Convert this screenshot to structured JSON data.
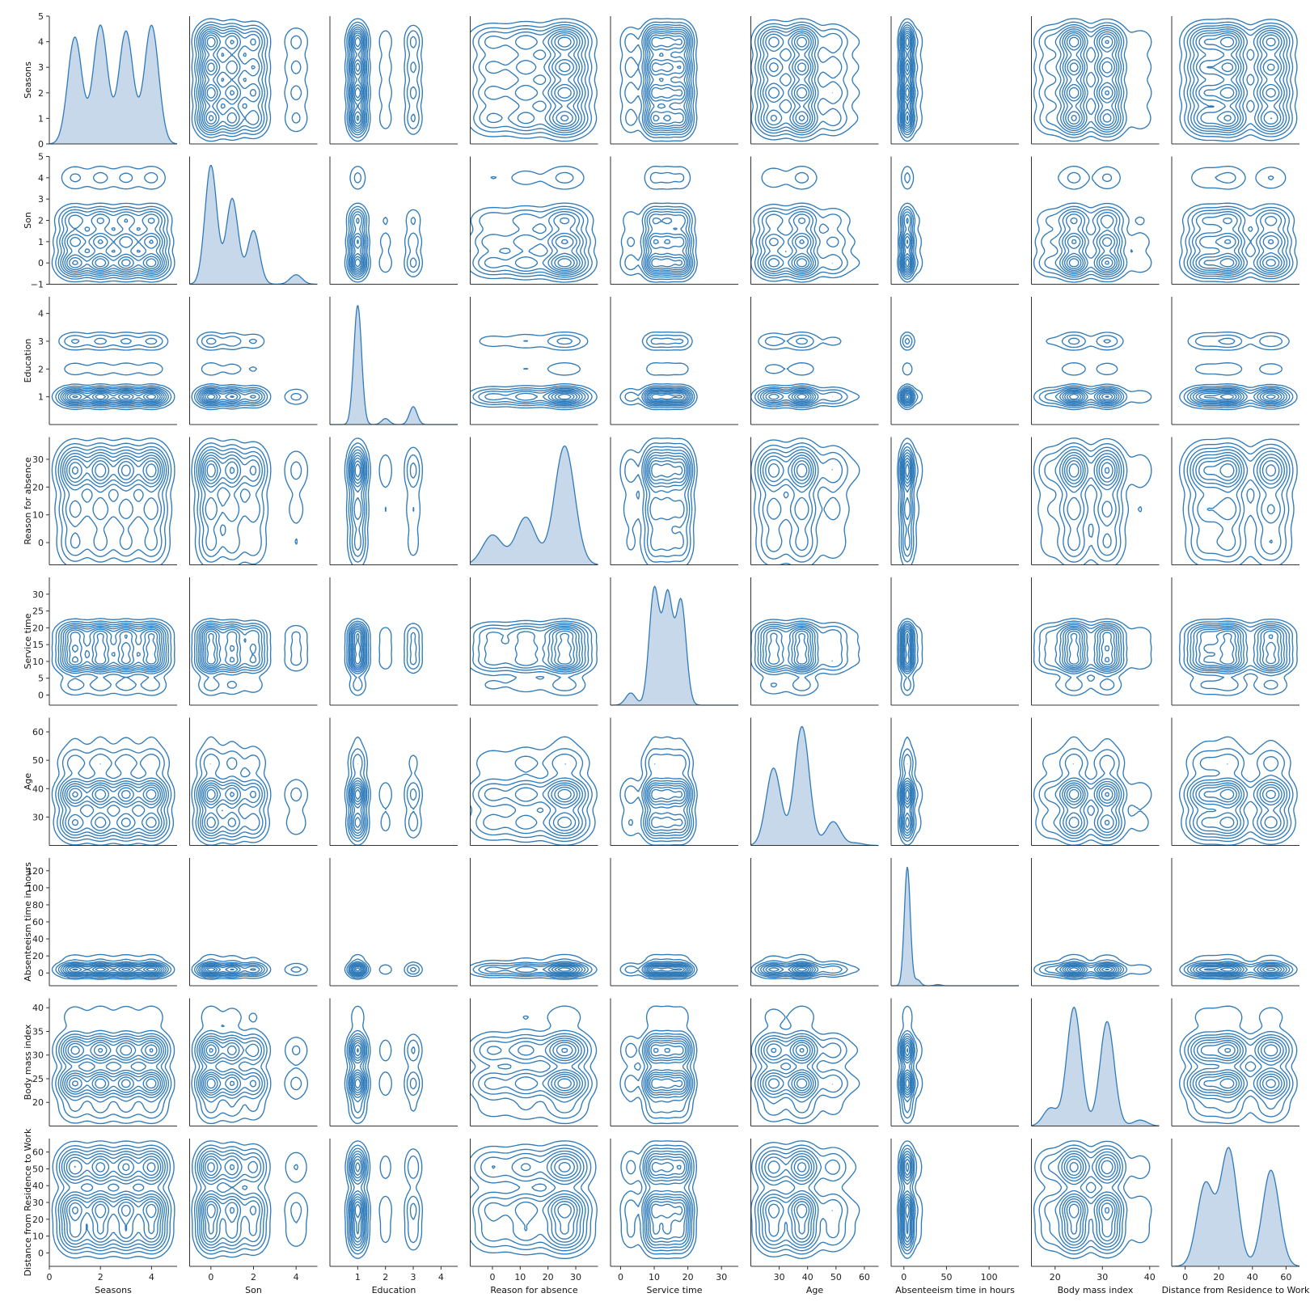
{
  "chart_data": {
    "type": "pairplot",
    "color": "#2f7ab9",
    "fill_color": "#c6d8ea",
    "diagonal_kind": "kde",
    "offdiagonal_kind": "kde_contour",
    "variables": [
      {
        "name": "Seasons",
        "range": [
          0,
          5
        ],
        "ticks": [
          0,
          1,
          2,
          3,
          4,
          5
        ],
        "xticks": [
          0,
          2,
          4
        ],
        "peaks": [
          [
            1,
            0.9
          ],
          [
            2,
            1.0
          ],
          [
            3,
            0.95
          ],
          [
            4,
            1.0
          ]
        ],
        "bw": 0.28
      },
      {
        "name": "Son",
        "range": [
          -1,
          5
        ],
        "ticks": [
          -1,
          0,
          1,
          2,
          3,
          4,
          5
        ],
        "xticks": [
          0,
          2,
          4
        ],
        "peaks": [
          [
            0,
            1.0
          ],
          [
            1,
            0.72
          ],
          [
            2,
            0.45
          ],
          [
            4,
            0.08
          ]
        ],
        "bw": 0.28
      },
      {
        "name": "Education",
        "range": [
          0,
          4.6
        ],
        "ticks": [
          1,
          2,
          3,
          4
        ],
        "xticks": [
          1,
          2,
          3,
          4
        ],
        "peaks": [
          [
            1,
            1.0
          ],
          [
            2,
            0.05
          ],
          [
            3,
            0.15
          ]
        ],
        "bw": 0.14
      },
      {
        "name": "Reason for absence",
        "range": [
          -8,
          38
        ],
        "ticks": [
          0,
          10,
          20,
          30
        ],
        "xticks": [
          0,
          10,
          20,
          30
        ],
        "peaks": [
          [
            0,
            0.25
          ],
          [
            12,
            0.4
          ],
          [
            26,
            1.0
          ]
        ],
        "bw": 3.6
      },
      {
        "name": "Service time",
        "range": [
          -3,
          35
        ],
        "ticks": [
          0,
          5,
          10,
          15,
          20,
          25,
          30
        ],
        "xticks": [
          0,
          10,
          20,
          30
        ],
        "peaks": [
          [
            3,
            0.1
          ],
          [
            10,
            0.95
          ],
          [
            14,
            0.9
          ],
          [
            18,
            0.85
          ]
        ],
        "bw": 1.5
      },
      {
        "name": "Age",
        "range": [
          20,
          65
        ],
        "ticks": [
          30,
          40,
          50,
          60
        ],
        "xticks": [
          30,
          40,
          50,
          60
        ],
        "peaks": [
          [
            28,
            0.65
          ],
          [
            38,
            1.0
          ],
          [
            49,
            0.2
          ],
          [
            57,
            0.02
          ]
        ],
        "bw": 2.6
      },
      {
        "name": "Absenteeism time in hours",
        "range": [
          -15,
          135
        ],
        "ticks": [
          0,
          20,
          40,
          60,
          80,
          100,
          120
        ],
        "xticks": [
          0,
          50,
          100
        ],
        "peaks": [
          [
            4,
            1.0
          ],
          [
            16,
            0.05
          ],
          [
            40,
            0.01
          ]
        ],
        "bw": 3.5
      },
      {
        "name": "Body mass index",
        "range": [
          15,
          42
        ],
        "ticks": [
          20,
          25,
          30,
          35,
          40
        ],
        "xticks": [
          20,
          30,
          40
        ],
        "peaks": [
          [
            19,
            0.15
          ],
          [
            24,
            1.0
          ],
          [
            31,
            0.88
          ],
          [
            38,
            0.05
          ]
        ],
        "bw": 1.5
      },
      {
        "name": "Distance from Residence to Work",
        "range": [
          -8,
          68
        ],
        "ticks": [
          0,
          10,
          20,
          30,
          40,
          50,
          60
        ],
        "xticks": [
          0,
          20,
          40,
          60
        ],
        "peaks": [
          [
            12,
            0.7
          ],
          [
            26,
            1.0
          ],
          [
            51,
            0.82
          ]
        ],
        "bw": 5.0
      }
    ]
  }
}
